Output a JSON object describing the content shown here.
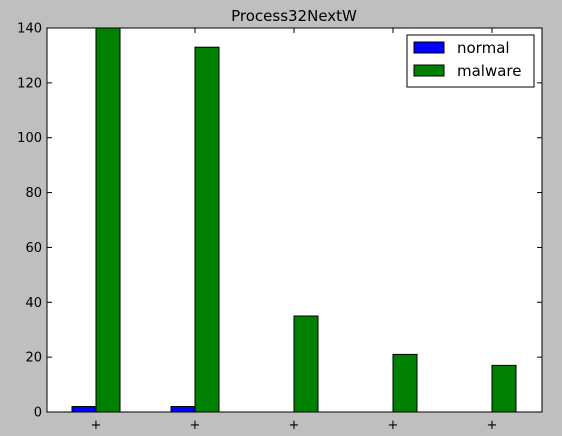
{
  "chart_data": {
    "type": "bar",
    "title": "Process32NextW",
    "xlabel": "",
    "ylabel": "",
    "ylim": [
      0,
      140
    ],
    "yticks": [
      0,
      20,
      40,
      60,
      80,
      100,
      120,
      140
    ],
    "categories": [
      "+",
      "+",
      "+",
      "+",
      "+"
    ],
    "series": [
      {
        "name": "normal",
        "values": [
          2,
          2,
          0,
          0,
          0
        ],
        "color": "#0000ff"
      },
      {
        "name": "malware",
        "values": [
          140,
          133,
          35,
          21,
          17
        ],
        "color": "#008000"
      }
    ],
    "legend_position": "top-right",
    "grid": false,
    "background_color": "#bfbfbf",
    "plot_background_color": "#ffffff"
  }
}
